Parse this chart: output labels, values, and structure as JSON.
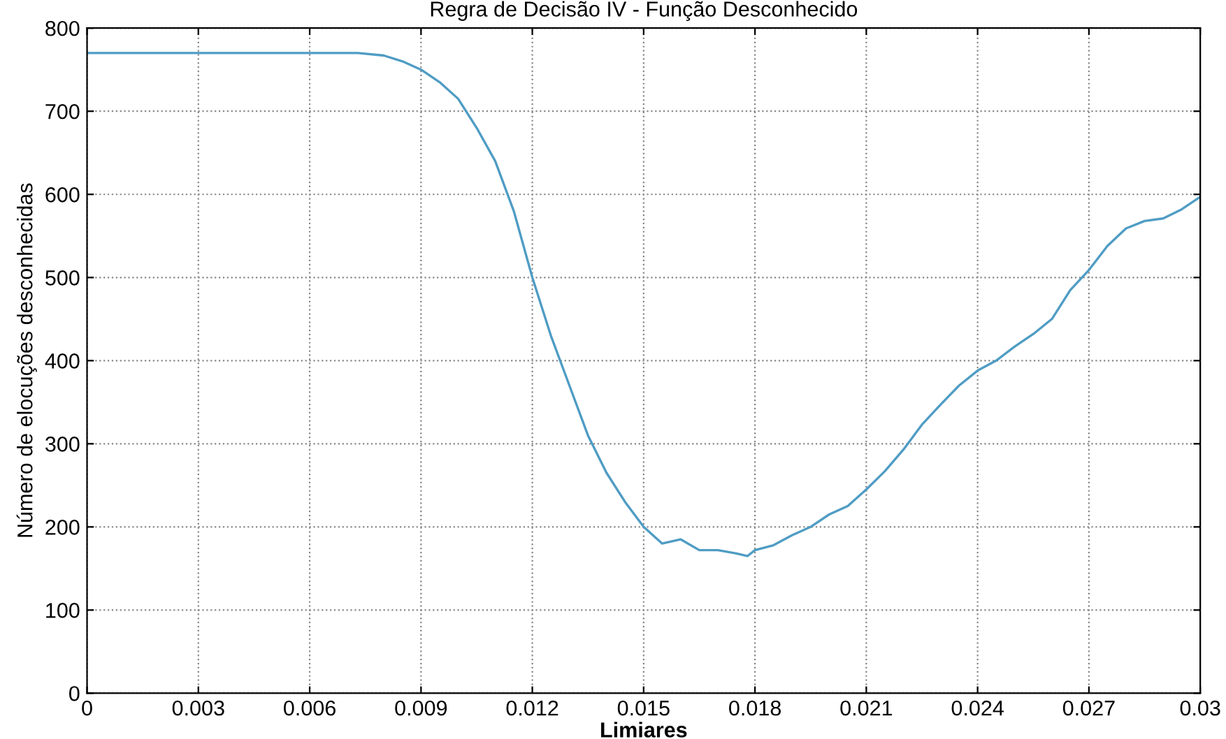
{
  "chart_data": {
    "type": "line",
    "title": "Regra de Decisão IV - Função Desconhecido",
    "xlabel": "Limiares",
    "ylabel": "Número de elocuções desconhecidas",
    "x": [
      0,
      0.002,
      0.004,
      0.006,
      0.0073,
      0.008,
      0.0085,
      0.009,
      0.0095,
      0.01,
      0.0105,
      0.011,
      0.0115,
      0.012,
      0.0125,
      0.013,
      0.0135,
      0.014,
      0.0145,
      0.015,
      0.0155,
      0.016,
      0.0165,
      0.017,
      0.0175,
      0.0178,
      0.018,
      0.0185,
      0.019,
      0.0195,
      0.02,
      0.0205,
      0.021,
      0.0215,
      0.022,
      0.0225,
      0.023,
      0.0235,
      0.024,
      0.0245,
      0.025,
      0.0255,
      0.026,
      0.0265,
      0.027,
      0.0275,
      0.028,
      0.0285,
      0.029,
      0.0295,
      0.03
    ],
    "series": [
      {
        "color": "#4f9cc4",
        "values": [
          770,
          770,
          770,
          770,
          770,
          767,
          760,
          750,
          735,
          715,
          680,
          640,
          580,
          500,
          430,
          370,
          310,
          265,
          230,
          200,
          180,
          185,
          172,
          172,
          168,
          165,
          172,
          178,
          190,
          200,
          215,
          225,
          245,
          267,
          293,
          323,
          347,
          370,
          388,
          400,
          417,
          432,
          450,
          485,
          509,
          538,
          559,
          568,
          571,
          582,
          597
        ]
      }
    ],
    "xlim": [
      0,
      0.03
    ],
    "xticks": [
      0,
      0.003,
      0.006,
      0.009,
      0.012,
      0.015,
      0.018,
      0.021,
      0.024,
      0.027,
      0.03
    ],
    "ylim": [
      0,
      800
    ],
    "yticks": [
      0,
      100,
      200,
      300,
      400,
      500,
      600,
      700,
      800
    ],
    "grid": true,
    "line_style": "solid",
    "marker": "none"
  }
}
